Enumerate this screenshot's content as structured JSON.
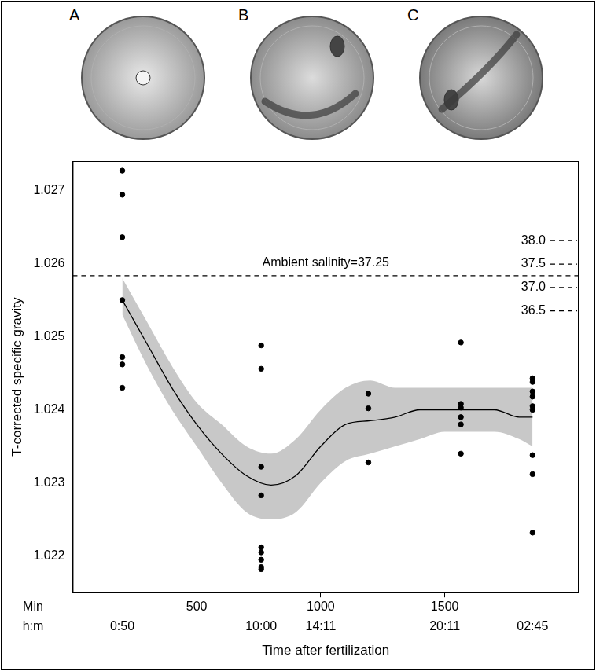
{
  "chart_data": {
    "type": "scatter",
    "panels": [
      "A",
      "B",
      "C"
    ],
    "x_label": "Time after fertilization",
    "y_label": "T-corrected specific gravity",
    "x_row_label": "Min",
    "x2_row_label": "h:m",
    "xlim": [
      0,
      2040
    ],
    "xticks": [
      500,
      1000,
      1500
    ],
    "x2ticks": [
      {
        "value": 200,
        "label": "0:50"
      },
      {
        "value": 760,
        "label": "10:00"
      },
      {
        "value": 1000,
        "label": "14:11"
      },
      {
        "value": 1500,
        "label": "20:11"
      },
      {
        "value": 1854,
        "label": "02:45"
      }
    ],
    "ylim": [
      1.0215,
      1.0274
    ],
    "yticks": [
      1.022,
      1.023,
      1.024,
      1.025,
      1.026,
      1.027
    ],
    "y2lim": [
      30.48,
      39.7
    ],
    "y2ticks": [
      {
        "value": 36.5,
        "label": "36.5"
      },
      {
        "value": 37,
        "label": "37.0"
      },
      {
        "value": 37.5,
        "label": "37.5"
      },
      {
        "value": 38,
        "label": "38.0"
      }
    ],
    "grid": false,
    "annotations": [
      {
        "text": "Ambient salinity=37.25",
        "value": 37.25,
        "axis": "y2",
        "line_style": "dashed",
        "color": "#000000"
      }
    ],
    "series": [
      {
        "type": "scatter",
        "color": "#000000",
        "marker": "circle",
        "x": [
          200,
          200,
          200,
          200,
          200,
          200,
          200,
          760,
          760,
          760,
          760,
          760,
          760,
          760,
          760,
          760,
          1192,
          1192,
          1192,
          1565,
          1565,
          1565,
          1565,
          1565,
          1565,
          1854,
          1854,
          1854,
          1854,
          1854,
          1854,
          1854,
          1854,
          1854
        ],
        "values": [
          1.02727,
          1.02694,
          1.02636,
          1.0255,
          1.02472,
          1.02462,
          1.0243,
          1.02488,
          1.02456,
          1.02322,
          1.02283,
          1.02212,
          1.02205,
          1.02195,
          1.02185,
          1.02182,
          1.02422,
          1.02402,
          1.02328,
          1.02492,
          1.02408,
          1.02403,
          1.0239,
          1.0238,
          1.0234,
          1.02443,
          1.02438,
          1.02425,
          1.02418,
          1.02405,
          1.024,
          1.02338,
          1.02312,
          1.02232
        ]
      },
      {
        "type": "line",
        "color": "#000000",
        "line_style": "solid",
        "x": [
          200,
          300,
          400,
          500,
          600,
          700,
          800,
          900,
          1000,
          1100,
          1200,
          1300,
          1400,
          1500,
          1600,
          1700,
          1800,
          1854
        ],
        "values": [
          1.0255,
          1.0249,
          1.0243,
          1.0238,
          1.0234,
          1.0231,
          1.02297,
          1.0231,
          1.0235,
          1.0238,
          1.02385,
          1.0239,
          1.024,
          1.024,
          1.024,
          1.024,
          1.0239,
          1.0239
        ],
        "lower": [
          1.0253,
          1.0246,
          1.024,
          1.0235,
          1.023,
          1.0226,
          1.0225,
          1.0226,
          1.023,
          1.0233,
          1.0234,
          1.0235,
          1.0236,
          1.0237,
          1.0237,
          1.0237,
          1.0236,
          1.0235
        ],
        "upper": [
          1.0258,
          1.0252,
          1.0246,
          1.0241,
          1.0238,
          1.0235,
          1.0234,
          1.0236,
          1.024,
          1.0243,
          1.0244,
          1.0243,
          1.0243,
          1.0243,
          1.0243,
          1.0243,
          1.0243,
          1.0243
        ]
      }
    ]
  }
}
